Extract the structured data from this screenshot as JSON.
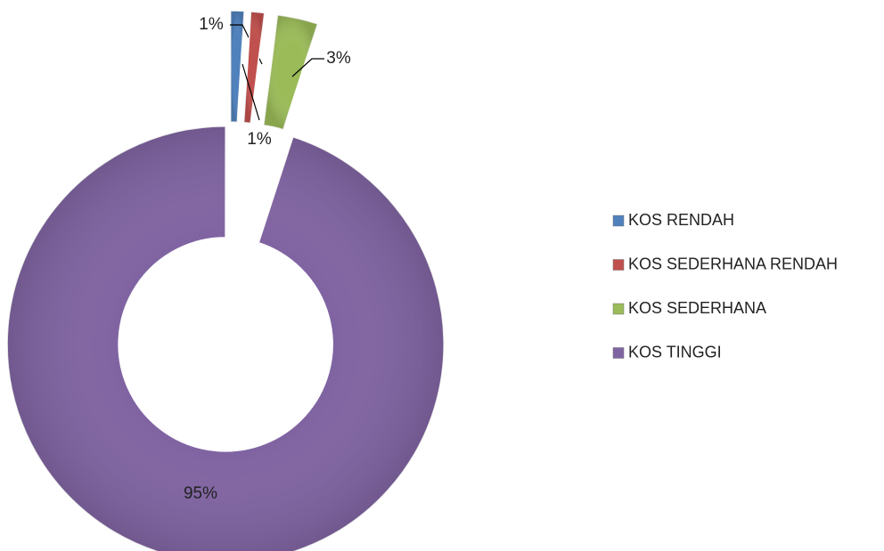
{
  "chart_data": {
    "type": "donut",
    "categories": [
      "KOS RENDAH",
      "KOS SEDERHANA RENDAH",
      "KOS SEDERHANA",
      "KOS TINGGI"
    ],
    "values": [
      1,
      1,
      3,
      95
    ],
    "value_labels": [
      "1%",
      "1%",
      "3%",
      "95%"
    ],
    "colors": [
      "#4f81bd",
      "#c0504d",
      "#9bbb59",
      "#8064a2"
    ],
    "legend": "right"
  }
}
